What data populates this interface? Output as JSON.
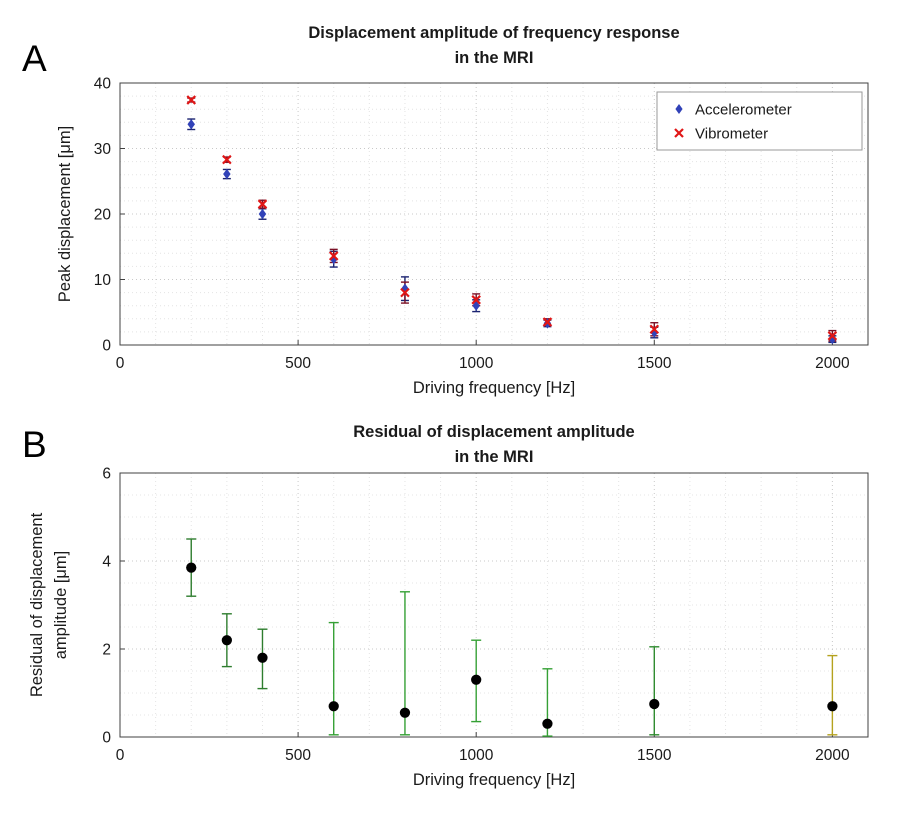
{
  "figure": {
    "background": "#ffffff"
  },
  "panels": {
    "a": {
      "label": "A"
    },
    "b": {
      "label": "B"
    }
  },
  "chart_data": [
    {
      "type": "scatter",
      "title_lines": [
        "Displacement amplitude of frequency response",
        "in the MRI"
      ],
      "xlabel": "Driving frequency [Hz]",
      "ylabel_lines": [
        "Peak displacement [μm]"
      ],
      "xlim": [
        0,
        2100
      ],
      "ylim": [
        0,
        40
      ],
      "xticks": [
        0,
        500,
        1000,
        1500,
        2000
      ],
      "yticks": [
        0,
        10,
        20,
        30,
        40
      ],
      "x_minor_step": 100,
      "y_minor_step": 2,
      "grid": true,
      "x": [
        200,
        300,
        400,
        600,
        800,
        1000,
        1200,
        1500,
        2000
      ],
      "series": [
        {
          "name": "Accelerometer",
          "marker": "diamond",
          "color": "#3142b8",
          "bar_color": "#1b2370",
          "msize": 5.2,
          "values": [
            33.7,
            26.1,
            20.0,
            13.1,
            8.6,
            6.0,
            3.3,
            1.9,
            0.9
          ],
          "err": [
            0.8,
            0.7,
            0.8,
            1.2,
            1.8,
            0.9,
            0.5,
            0.8,
            0.5
          ]
        },
        {
          "name": "Vibrometer",
          "marker": "x",
          "color": "#e01616",
          "bar_color": "#7a1025",
          "msize": 5,
          "values": [
            37.4,
            28.3,
            21.5,
            13.6,
            8.0,
            6.9,
            3.5,
            2.4,
            1.4
          ],
          "err": [
            0.3,
            0.4,
            0.6,
            1.0,
            1.6,
            0.9,
            0.5,
            1.0,
            0.8
          ]
        }
      ],
      "legend": {
        "position": "top-right",
        "entries": [
          "Accelerometer",
          "Vibrometer"
        ]
      }
    },
    {
      "type": "scatter",
      "title_lines": [
        "Residual of displacement amplitude",
        "in the MRI"
      ],
      "xlabel": "Driving frequency [Hz]",
      "ylabel_lines": [
        "Residual of displacement",
        "amplitude [μm]"
      ],
      "xlim": [
        0,
        2100
      ],
      "ylim": [
        0,
        6
      ],
      "xticks": [
        0,
        500,
        1000,
        1500,
        2000
      ],
      "yticks": [
        0,
        2,
        4,
        6
      ],
      "x_minor_step": 100,
      "y_minor_step": 0.5,
      "grid": true,
      "x": [
        200,
        300,
        400,
        600,
        800,
        1000,
        1200,
        1500,
        2000
      ],
      "series": [
        {
          "name": "Residual",
          "marker": "circle",
          "color": "#000000",
          "msize": 5.4,
          "values": [
            3.85,
            2.2,
            1.8,
            0.7,
            0.55,
            1.3,
            0.3,
            0.75,
            0.7
          ],
          "err_low": [
            0.65,
            0.6,
            0.7,
            0.65,
            0.5,
            0.95,
            0.28,
            0.7,
            0.65
          ],
          "err_high": [
            0.65,
            0.6,
            0.65,
            1.9,
            2.75,
            0.9,
            1.25,
            1.3,
            1.15
          ],
          "bar_colors": [
            "#2e7d2e",
            "#2e7d2e",
            "#2e7d2e",
            "#35a035",
            "#35a035",
            "#35a035",
            "#35a035",
            "#2e8b2e",
            "#b5a21e"
          ]
        }
      ]
    }
  ]
}
